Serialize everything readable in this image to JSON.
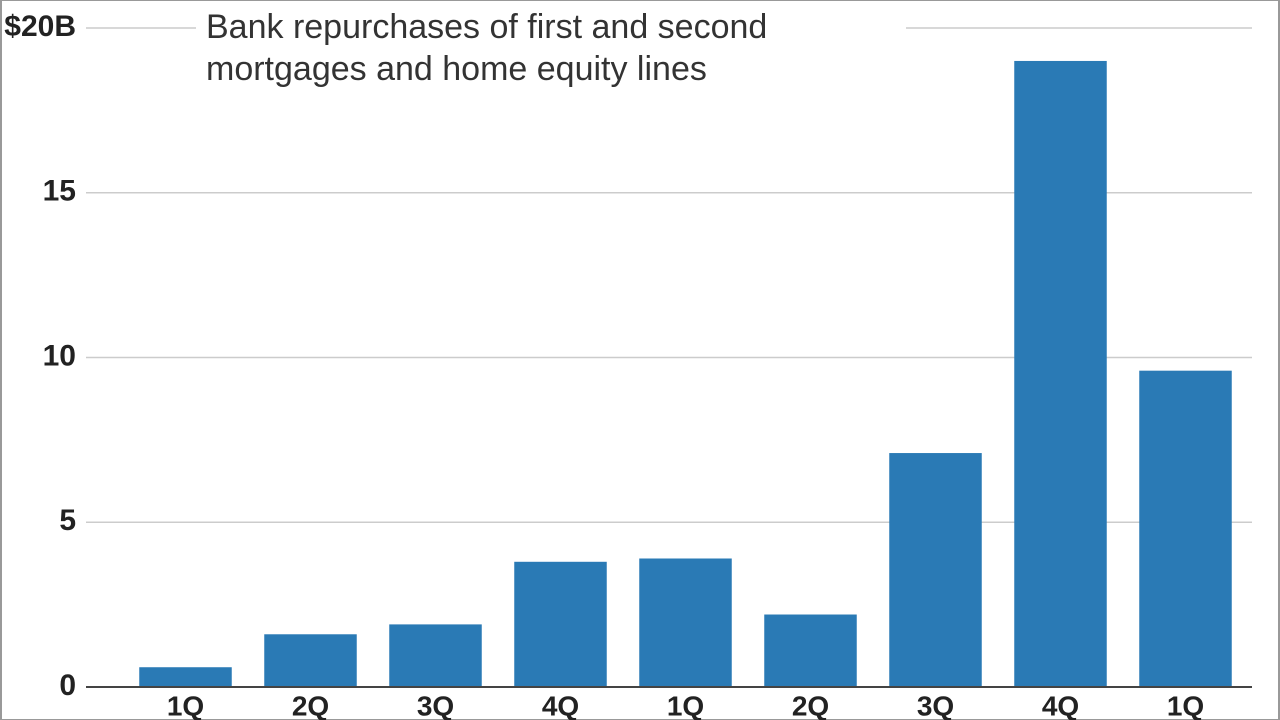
{
  "chart_data": {
    "type": "bar",
    "title": "Bank repurchases of first and second mortgages and home equity lines",
    "categories": [
      "1Q",
      "2Q",
      "3Q",
      "4Q",
      "1Q",
      "2Q",
      "3Q",
      "4Q",
      "1Q"
    ],
    "values": [
      0.6,
      1.6,
      1.9,
      3.8,
      3.9,
      2.2,
      7.1,
      19.0,
      9.6
    ],
    "color": "#2a7ab5",
    "ylim": [
      0,
      20
    ],
    "yticks": [
      0,
      5,
      10,
      15,
      {
        "value": 20,
        "label": "$20B"
      }
    ],
    "grid": true
  }
}
